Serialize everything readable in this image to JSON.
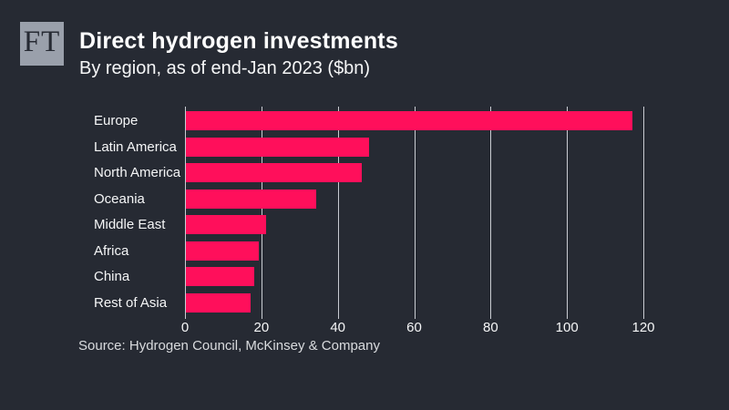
{
  "brand": {
    "logo_text": "FT"
  },
  "header": {
    "title": "Direct hydrogen investments",
    "subtitle": "By region, as of end-Jan 2023 ($bn)"
  },
  "chart_data": {
    "type": "bar",
    "orientation": "horizontal",
    "title": "Direct hydrogen investments",
    "subtitle": "By region, as of end-Jan 2023 ($bn)",
    "categories": [
      "Europe",
      "Latin America",
      "North America",
      "Oceania",
      "Middle East",
      "Africa",
      "China",
      "Rest of Asia"
    ],
    "values": [
      117,
      48,
      46,
      34,
      21,
      19,
      18,
      17
    ],
    "xlabel": "",
    "ylabel": "",
    "xlim": [
      0,
      120
    ],
    "xticks": [
      0,
      20,
      40,
      60,
      80,
      100,
      120
    ],
    "grid": true,
    "legend": "none",
    "unit": "$bn"
  },
  "colors": {
    "background": "#262a33",
    "bar": "#ff0f5b",
    "gridline": "#c9ccd2",
    "text": "#f5f6f7",
    "muted_text": "#d9dbde",
    "logo_bg": "#9aa0ab"
  },
  "footer": {
    "source": "Source: Hydrogen Council, McKinsey & Company"
  }
}
